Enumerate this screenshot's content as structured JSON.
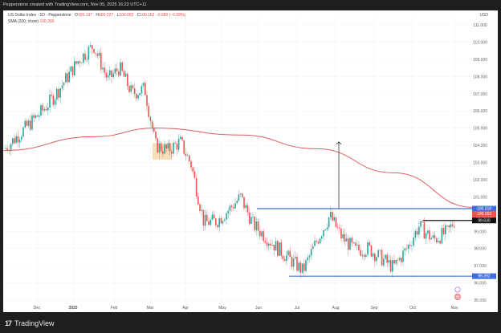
{
  "header": {
    "caption": "Pepperstone created with TradingView.com, Nov 05, 2025 16:22 UTC+11"
  },
  "legend": {
    "symbol": "US Dollar Index · 1D · Pepperstone",
    "open_label": "O",
    "open": "100.197",
    "high_label": "H",
    "high": "100.227",
    "low_label": "L",
    "low": "100.092",
    "close_label": "C",
    "close": "100.162",
    "change": "−0.080 (−0.08%)",
    "sma_label": "SMA (200, close)",
    "sma_value": "100.390"
  },
  "axis": {
    "currency": "USD",
    "price_ticks": [
      "111.000",
      "110.000",
      "109.000",
      "108.000",
      "107.000",
      "106.000",
      "105.000",
      "104.000",
      "103.000",
      "102.000",
      "101.000",
      "99.000",
      "98.000",
      "97.000",
      "96.000",
      "95.000"
    ],
    "time_ticks": [
      "Dec",
      "2025",
      "Feb",
      "Mar",
      "Apr",
      "May",
      "Jun",
      "Jul",
      "Aug",
      "Sep",
      "Oct",
      "Nov"
    ]
  },
  "price_tags": {
    "resistance": "100.318",
    "last": "100.162",
    "countdown": "16:36:57",
    "mid_level": "99.630",
    "support": "96.392"
  },
  "colors": {
    "up": "#26a69a",
    "down": "#ef5350",
    "sma": "#e05a5a",
    "level_line": "#3d6fe0",
    "mid_line": "#111111",
    "highlight_box": "#f7c98a"
  },
  "footer": {
    "brand": "TradingView"
  },
  "chart_data": {
    "type": "candlestick",
    "title": "US Dollar Index · 1D · Pepperstone",
    "xlabel": "",
    "ylabel": "USD",
    "ylim": [
      94.7,
      111.8
    ],
    "x_ticks": [
      "Dec",
      "2025",
      "Feb",
      "Mar",
      "Apr",
      "May",
      "Jun",
      "Jul",
      "Aug",
      "Sep",
      "Oct",
      "Nov"
    ],
    "y_ticks": [
      95,
      96,
      97,
      98,
      99,
      100,
      101,
      102,
      103,
      104,
      105,
      106,
      107,
      108,
      109,
      110,
      111
    ],
    "approx_close_path": [
      {
        "date": "late Nov 2024",
        "close": 103.8
      },
      {
        "date": "early Dec 2024",
        "close": 106.0
      },
      {
        "date": "mid Dec 2024",
        "close": 106.9
      },
      {
        "date": "late Dec 2024",
        "close": 108.0
      },
      {
        "date": "early Jan 2025",
        "close": 109.0
      },
      {
        "date": "mid Jan 2025",
        "close": 109.8
      },
      {
        "date": "late Jan 2025",
        "close": 107.8
      },
      {
        "date": "early Feb 2025",
        "close": 108.5
      },
      {
        "date": "mid Feb 2025",
        "close": 107.0
      },
      {
        "date": "late Feb 2025",
        "close": 107.3
      },
      {
        "date": "early Mar 2025",
        "close": 104.0
      },
      {
        "date": "mid Mar 2025",
        "close": 103.7
      },
      {
        "date": "late Mar 2025",
        "close": 104.2
      },
      {
        "date": "early Apr 2025",
        "close": 102.9
      },
      {
        "date": "mid Apr 2025",
        "close": 99.5
      },
      {
        "date": "late Apr 2025",
        "close": 99.6
      },
      {
        "date": "early May 2025",
        "close": 100.2
      },
      {
        "date": "mid May 2025",
        "close": 101.0
      },
      {
        "date": "late May 2025",
        "close": 99.4
      },
      {
        "date": "mid Jun 2025",
        "close": 98.0
      },
      {
        "date": "early Jul 2025",
        "close": 96.7
      },
      {
        "date": "mid Jul 2025",
        "close": 98.4
      },
      {
        "date": "late Jul 2025",
        "close": 99.9
      },
      {
        "date": "early Aug 2025",
        "close": 98.7
      },
      {
        "date": "mid Aug 2025",
        "close": 97.9
      },
      {
        "date": "late Aug 2025",
        "close": 98.0
      },
      {
        "date": "mid Sep 2025",
        "close": 96.9
      },
      {
        "date": "late Sep 2025",
        "close": 98.0
      },
      {
        "date": "early Oct 2025",
        "close": 99.3
      },
      {
        "date": "mid Oct 2025",
        "close": 98.5
      },
      {
        "date": "late Oct 2025",
        "close": 99.0
      },
      {
        "date": "early Nov 2025",
        "close": 100.162
      }
    ],
    "sma_200_path": [
      {
        "date": "late Nov 2024",
        "value": 103.7
      },
      {
        "date": "Jan 2025",
        "value": 104.5
      },
      {
        "date": "early Mar 2025",
        "value": 105.0
      },
      {
        "date": "May 2025",
        "value": 104.6
      },
      {
        "date": "Jul 2025",
        "value": 103.8
      },
      {
        "date": "Sep 2025",
        "value": 102.4
      },
      {
        "date": "Nov 2025",
        "value": 100.39
      }
    ],
    "annotations": [
      {
        "type": "horizontal_line",
        "price": 100.318,
        "from": "late May 2025",
        "label": "100.318",
        "color": "blue"
      },
      {
        "type": "horizontal_line",
        "price": 96.392,
        "from": "late Jun 2025",
        "label": "96.392",
        "color": "blue"
      },
      {
        "type": "horizontal_line",
        "price": 99.63,
        "from": "mid Oct 2025",
        "label": "99.630",
        "color": "black"
      },
      {
        "type": "arrow_up",
        "at": "late Jul 2025",
        "from": 100.318,
        "to": 104.2
      },
      {
        "type": "rectangle",
        "from": "early Mar 2025",
        "to": "late Mar 2025",
        "price_range": [
          103.2,
          104.1
        ],
        "color": "orange"
      }
    ]
  }
}
